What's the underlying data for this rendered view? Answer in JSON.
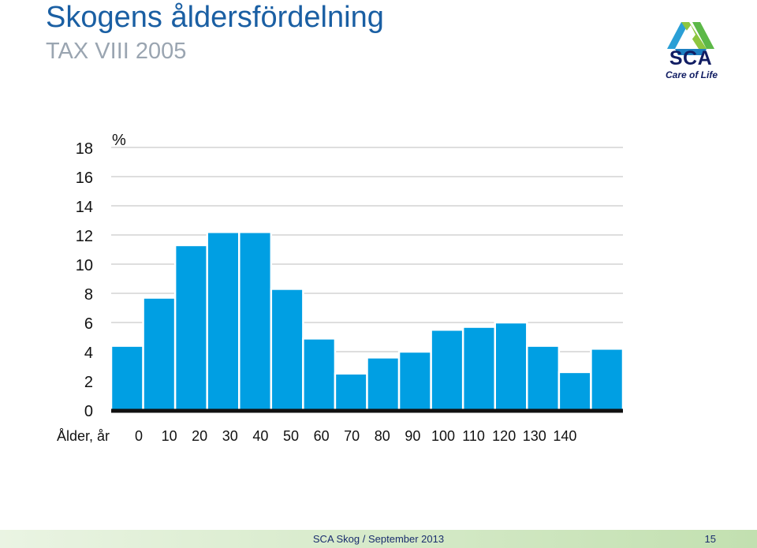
{
  "header": {
    "title": "Skogens åldersfördelning",
    "subtitle": "TAX VIII   2005"
  },
  "logo": {
    "name": "SCA",
    "tagline": "Care of Life",
    "colors": [
      "#2a9fd6",
      "#8dc63f",
      "#111d63"
    ]
  },
  "chart_data": {
    "type": "bar",
    "ylabel": "%",
    "xlabel": "Ålder, år",
    "x_ticks": [
      "0",
      "10",
      "20",
      "30",
      "40",
      "50",
      "60",
      "70",
      "80",
      "90",
      "100",
      "110",
      "120",
      "130",
      "140"
    ],
    "y_ticks": [
      "0",
      "2",
      "4",
      "6",
      "8",
      "10",
      "12",
      "14",
      "16",
      "18"
    ],
    "ylim": [
      0,
      18
    ],
    "values": [
      4.4,
      7.7,
      11.3,
      12.2,
      12.2,
      8.3,
      4.9,
      2.5,
      3.6,
      4.0,
      5.5,
      5.7,
      6.0,
      4.4,
      2.6,
      4.2
    ],
    "bar_color": "#009fe3",
    "grid": true
  },
  "footer": {
    "text": "SCA Skog / September 2013",
    "page": "15"
  }
}
